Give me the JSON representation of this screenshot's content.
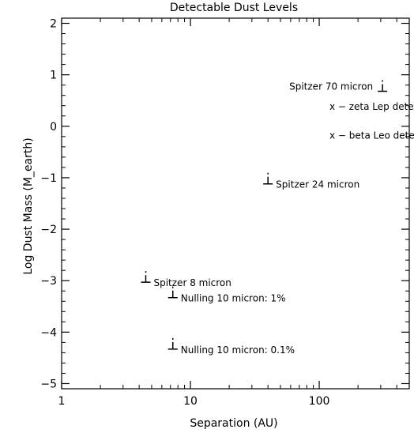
{
  "chart_data": {
    "type": "scatter",
    "title": "Detectable Dust Levels",
    "xlabel": "Separation (AU)",
    "ylabel": "Log Dust Mass (M_earth)",
    "x_scale": "log",
    "xlim": [
      1,
      500
    ],
    "ylim": [
      -5.1,
      2.1
    ],
    "x_ticks": [
      1,
      10,
      100
    ],
    "x_tick_labels": [
      "1",
      "10",
      "100"
    ],
    "y_ticks": [
      2,
      1,
      0,
      -1,
      -2,
      -3,
      -4,
      -5
    ],
    "y_tick_labels": [
      "2",
      "1",
      "0",
      "−1",
      "−2",
      "−3",
      "−4",
      "−5"
    ],
    "grid": false,
    "points": [
      {
        "label": "Spitzer 70 micron",
        "x": 310,
        "y": 0.68,
        "label_side": "left"
      },
      {
        "label": "Spitzer 24 micron",
        "x": 40,
        "y": -1.12,
        "label_side": "right"
      },
      {
        "label": "Spitzer 8 micron",
        "x": 4.5,
        "y": -3.03,
        "label_side": "right"
      },
      {
        "label": "Nulling 10 micron: 1%",
        "x": 7.3,
        "y": -3.33,
        "label_side": "right"
      },
      {
        "label": "Nulling 10 micron: 0.1%",
        "x": 7.3,
        "y": -4.33,
        "label_side": "right"
      }
    ],
    "annotations": [
      {
        "text": "x − zeta Lep detection",
        "x": 120,
        "y": 0.38
      },
      {
        "text": "x − beta Leo detection",
        "x": 120,
        "y": -0.18
      }
    ]
  }
}
